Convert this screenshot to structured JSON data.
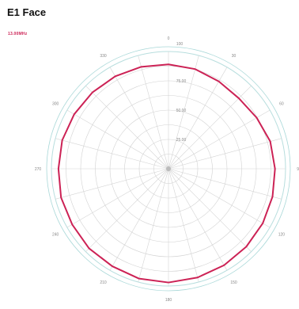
{
  "chart_data": {
    "type": "polar-line",
    "title": "E1 Face",
    "legend": [
      "13.00MHz"
    ],
    "angle_labels": [
      {
        "deg": 0,
        "label": "0"
      },
      {
        "deg": 30,
        "label": "30"
      },
      {
        "deg": 60,
        "label": "60"
      },
      {
        "deg": 90,
        "label": "90"
      },
      {
        "deg": 120,
        "label": "120"
      },
      {
        "deg": 150,
        "label": "150"
      },
      {
        "deg": 180,
        "label": "180"
      },
      {
        "deg": 210,
        "label": "210"
      },
      {
        "deg": 240,
        "label": "240"
      },
      {
        "deg": 270,
        "label": "270"
      },
      {
        "deg": 300,
        "label": "300"
      },
      {
        "deg": 330,
        "label": "330"
      }
    ],
    "radial_ticks": [
      {
        "value": 25,
        "label": "25.00"
      },
      {
        "value": 50,
        "label": "50.00"
      },
      {
        "value": 75,
        "label": "75.00"
      },
      {
        "value": 100,
        "label": "100"
      }
    ],
    "rmax": 100,
    "series": [
      {
        "name": "13.00MHz",
        "color": "#cc2255",
        "angles": [
          0,
          15,
          30,
          45,
          60,
          75,
          90,
          105,
          120,
          135,
          150,
          165,
          180,
          195,
          210,
          225,
          240,
          255,
          270,
          285,
          300,
          315,
          330,
          345
        ],
        "values": [
          89,
          88,
          86,
          85,
          87,
          90,
          91,
          92,
          93,
          94,
          95,
          96,
          97,
          97,
          96,
          96,
          95,
          95,
          94,
          94,
          93,
          92,
          91,
          90
        ]
      }
    ]
  }
}
